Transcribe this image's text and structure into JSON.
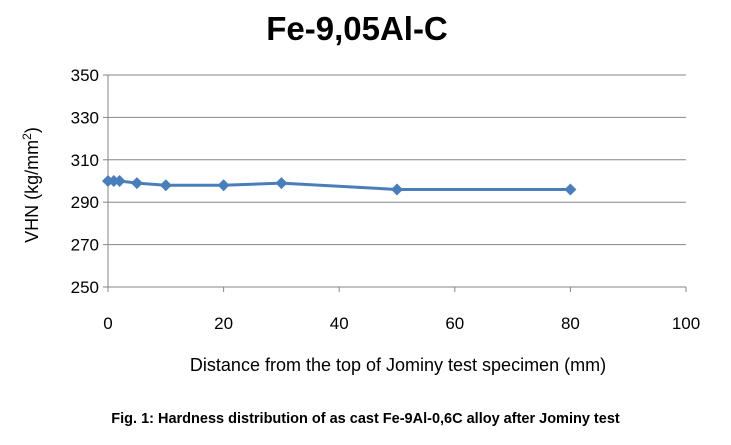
{
  "chart_data": {
    "type": "line",
    "title": "Fe-9,05Al-C",
    "xlabel": "Distance from the top of Jominy test specimen (mm)",
    "ylabel_main": "VHN (kg/mm",
    "ylabel_sup": "2",
    "ylabel_close": ")",
    "xlim": [
      0,
      100
    ],
    "ylim": [
      250,
      350
    ],
    "xticks": [
      0,
      20,
      40,
      60,
      80,
      100
    ],
    "yticks": [
      250,
      270,
      290,
      310,
      330,
      350
    ],
    "grid": "horizontal",
    "legend": "none",
    "series": [
      {
        "name": "Fe-9,05Al-C",
        "color": "#4a7ebb",
        "marker": "diamond",
        "x": [
          0,
          1,
          2,
          5,
          10,
          20,
          30,
          50,
          80
        ],
        "y": [
          300,
          300,
          300,
          299,
          298,
          298,
          299,
          296,
          296
        ]
      }
    ]
  },
  "caption": "Fig. 1: Hardness distribution of as cast Fe-9Al-0,6C alloy after Jominy test"
}
